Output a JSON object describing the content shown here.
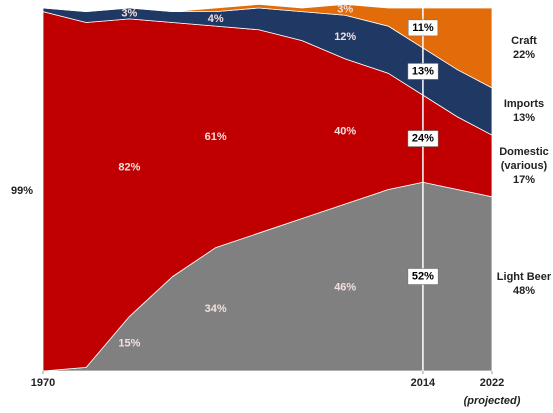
{
  "chart_data": {
    "type": "stacked_area",
    "x": [
      1970,
      1975,
      1980,
      1985,
      1990,
      1995,
      2000,
      2005,
      2010,
      2014,
      2018,
      2022
    ],
    "xlim": [
      1970,
      2022
    ],
    "xticks": [
      1970,
      2014,
      2022
    ],
    "ylim": [
      0,
      100
    ],
    "reference_line_x": 2014,
    "annotations": [
      "(projected)"
    ],
    "series": [
      {
        "name": "Light Beer",
        "color": "#808080",
        "values": [
          0,
          1,
          15,
          26,
          34,
          38,
          42,
          46,
          50,
          52,
          50,
          48
        ],
        "value_labels": [
          null,
          null,
          "15%",
          null,
          "34%",
          null,
          null,
          "46%",
          null,
          "52%",
          null,
          "48%"
        ]
      },
      {
        "name": "Domestic (various)",
        "color": "#c00000",
        "values": [
          99,
          95,
          82,
          70,
          61,
          56,
          49,
          40,
          32,
          24,
          20,
          17
        ],
        "value_labels": [
          "99%",
          null,
          "82%",
          null,
          "61%",
          null,
          null,
          "40%",
          null,
          "24%",
          null,
          "17%"
        ]
      },
      {
        "name": "Imports",
        "color": "#1f3864",
        "values": [
          1,
          3,
          3,
          3,
          4,
          6,
          8,
          12,
          13,
          13,
          13,
          13
        ],
        "value_labels": [
          null,
          null,
          "3%",
          null,
          "4%",
          null,
          null,
          "12%",
          null,
          "13%",
          null,
          "13%"
        ]
      },
      {
        "name": "Craft",
        "color": "#e36c0a",
        "values": [
          0,
          0,
          0,
          0,
          1,
          1,
          1,
          3,
          5,
          11,
          17,
          22
        ],
        "value_labels": [
          null,
          null,
          null,
          null,
          null,
          null,
          null,
          "3%",
          null,
          "11%",
          null,
          "22%"
        ]
      }
    ]
  }
}
